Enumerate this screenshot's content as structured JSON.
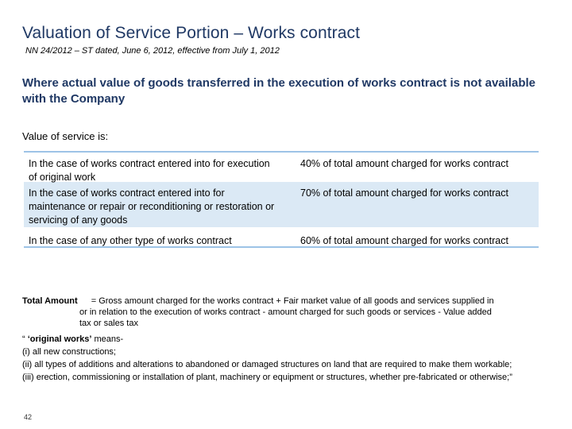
{
  "title": "Valuation of Service Portion – Works contract",
  "subtitle": "NN 24/2012 – ST dated, June 6, 2012, effective from July 1, 2012",
  "heading": "Where actual value of goods transferred in the execution of works contract is not available with the Company",
  "intro": "Value of service is:",
  "table": {
    "rows": [
      {
        "case": "In the case of works contract entered into for execution of original work",
        "value": "40% of total amount charged for works contract"
      },
      {
        "case": "In the case of works contract entered into for maintenance or repair or reconditioning or restoration or servicing of any goods",
        "value": "70% of total amount charged for works contract"
      },
      {
        "case": "In the case of any other type of works contract",
        "value": "60% of total amount charged for works contract"
      }
    ]
  },
  "formula": {
    "label": "Total Amount",
    "line1": "= Gross amount charged for the works contract  + Fair market value of all goods and services supplied in",
    "line2": "or in relation to the execution of works contract  -  amount charged for such goods or services -  Value added",
    "line3": "tax or sales tax"
  },
  "definitions": {
    "intro_open": "“ ",
    "term": "‘original works’",
    "intro_tail": " means-",
    "items": [
      "(i) all new constructions;",
      "(ii) all types of additions and alterations to abandoned or damaged structures on land that are required to make them workable;",
      "(iii) erection, commissioning or installation of plant, machinery or equipment or structures, whether pre-fabricated or otherwise;”"
    ]
  },
  "page_number": "42"
}
